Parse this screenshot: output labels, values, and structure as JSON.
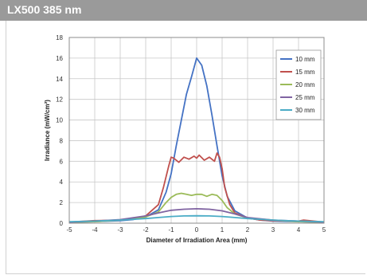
{
  "header": {
    "title": "LX500 385 nm"
  },
  "colors": {
    "header_bg": "#9a9a9a",
    "grid": "#c8c8c8"
  },
  "chart_data": {
    "type": "line",
    "title": "",
    "xlabel": "Diameter of Irradiation Area (mm)",
    "ylabel": "Irradiance (mW/cm²)",
    "xlim": [
      -5,
      5
    ],
    "ylim": [
      0,
      18
    ],
    "xticks": [
      -5,
      -4,
      -3,
      -2,
      -1,
      0,
      1,
      2,
      3,
      4,
      5
    ],
    "yticks": [
      0,
      2,
      4,
      6,
      8,
      10,
      12,
      14,
      16,
      18
    ],
    "grid": true,
    "legend_position": "top-right",
    "series": [
      {
        "name": "10 mm",
        "color": "#4472c4",
        "x": [
          -5,
          -4,
          -3,
          -2.5,
          -2,
          -1.5,
          -1.2,
          -1,
          -0.8,
          -0.6,
          -0.4,
          -0.2,
          0,
          0.2,
          0.4,
          0.6,
          0.8,
          1,
          1.2,
          1.5,
          2,
          2.5,
          3,
          4,
          5
        ],
        "y": [
          0.1,
          0.15,
          0.25,
          0.35,
          0.6,
          1.3,
          3.0,
          4.8,
          7.5,
          10.0,
          12.5,
          14.2,
          16.0,
          15.3,
          13.3,
          10.5,
          7.5,
          4.6,
          2.6,
          1.2,
          0.5,
          0.3,
          0.2,
          0.15,
          0.1
        ]
      },
      {
        "name": "15 mm",
        "color": "#c0504d",
        "x": [
          -5,
          -4,
          -3,
          -2.5,
          -2,
          -1.5,
          -1.3,
          -1.1,
          -1,
          -0.9,
          -0.7,
          -0.5,
          -0.3,
          -0.1,
          0,
          0.1,
          0.3,
          0.5,
          0.7,
          0.8,
          0.9,
          1,
          1.1,
          1.3,
          1.5,
          2,
          2.5,
          3,
          4,
          4.2,
          5
        ],
        "y": [
          0.1,
          0.25,
          0.3,
          0.4,
          0.7,
          1.8,
          3.5,
          5.5,
          6.4,
          6.3,
          5.9,
          6.4,
          6.2,
          6.5,
          6.3,
          6.6,
          6.1,
          6.4,
          6.0,
          6.8,
          6.4,
          5.3,
          3.5,
          1.8,
          1.0,
          0.5,
          0.3,
          0.25,
          0.2,
          0.3,
          0.1
        ]
      },
      {
        "name": "20 mm",
        "color": "#9bbb59",
        "x": [
          -5,
          -4,
          -3,
          -2,
          -1.5,
          -1.2,
          -1,
          -0.8,
          -0.6,
          -0.4,
          -0.2,
          0,
          0.2,
          0.4,
          0.6,
          0.8,
          1,
          1.2,
          1.5,
          2,
          3,
          4,
          5
        ],
        "y": [
          0.1,
          0.15,
          0.3,
          0.6,
          1.1,
          2.0,
          2.5,
          2.8,
          2.9,
          2.8,
          2.7,
          2.8,
          2.8,
          2.6,
          2.8,
          2.7,
          2.2,
          1.5,
          0.9,
          0.5,
          0.3,
          0.15,
          0.1
        ]
      },
      {
        "name": "25 mm",
        "color": "#8064a2",
        "x": [
          -5,
          -4,
          -3,
          -2,
          -1.5,
          -1,
          -0.5,
          0,
          0.5,
          1,
          1.5,
          2,
          3,
          4,
          5
        ],
        "y": [
          0.1,
          0.2,
          0.35,
          0.7,
          1.0,
          1.25,
          1.35,
          1.4,
          1.35,
          1.2,
          0.9,
          0.55,
          0.3,
          0.2,
          0.1
        ]
      },
      {
        "name": "30 mm",
        "color": "#4bacc6",
        "x": [
          -5,
          -4,
          -3,
          -2,
          -1.5,
          -1,
          -0.5,
          0,
          0.5,
          1,
          1.5,
          2,
          3,
          4,
          5
        ],
        "y": [
          0.15,
          0.2,
          0.3,
          0.45,
          0.55,
          0.65,
          0.7,
          0.72,
          0.7,
          0.65,
          0.55,
          0.45,
          0.3,
          0.2,
          0.15
        ]
      }
    ]
  }
}
